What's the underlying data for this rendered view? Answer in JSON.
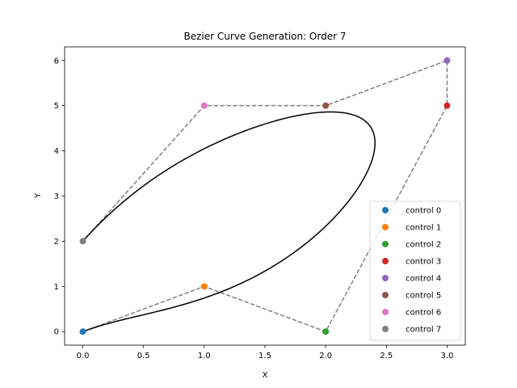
{
  "chart_data": {
    "type": "scatter",
    "title": "Bezier Curve Generation: Order 7",
    "xlabel": "X",
    "ylabel": "Y",
    "xlim": [
      -0.15,
      3.15
    ],
    "ylim": [
      -0.3,
      6.3
    ],
    "xticks": [
      0.0,
      0.5,
      1.0,
      1.5,
      2.0,
      2.5,
      3.0
    ],
    "xtick_labels": [
      "0.0",
      "0.5",
      "1.0",
      "1.5",
      "2.0",
      "2.5",
      "3.0"
    ],
    "yticks": [
      0,
      1,
      2,
      3,
      4,
      5,
      6
    ],
    "ytick_labels": [
      "0",
      "1",
      "2",
      "3",
      "4",
      "5",
      "6"
    ],
    "grid": false,
    "legend_position": "lower-right",
    "control_polygon": {
      "style": "dashed",
      "color": "#808080"
    },
    "curve": {
      "color": "#000000",
      "kind": "bezier",
      "order": 7
    },
    "series": [
      {
        "name": "control 0",
        "x": [
          0
        ],
        "y": [
          0
        ],
        "color": "#1f77b4"
      },
      {
        "name": "control 1",
        "x": [
          1
        ],
        "y": [
          1
        ],
        "color": "#ff7f0e"
      },
      {
        "name": "control 2",
        "x": [
          2
        ],
        "y": [
          0
        ],
        "color": "#2ca02c"
      },
      {
        "name": "control 3",
        "x": [
          3
        ],
        "y": [
          5
        ],
        "color": "#d62728"
      },
      {
        "name": "control 4",
        "x": [
          3
        ],
        "y": [
          6
        ],
        "color": "#9467bd"
      },
      {
        "name": "control 5",
        "x": [
          2
        ],
        "y": [
          5
        ],
        "color": "#8c564b"
      },
      {
        "name": "control 6",
        "x": [
          1
        ],
        "y": [
          5
        ],
        "color": "#e377c2"
      },
      {
        "name": "control 7",
        "x": [
          0
        ],
        "y": [
          2
        ],
        "color": "#7f7f7f"
      }
    ]
  }
}
